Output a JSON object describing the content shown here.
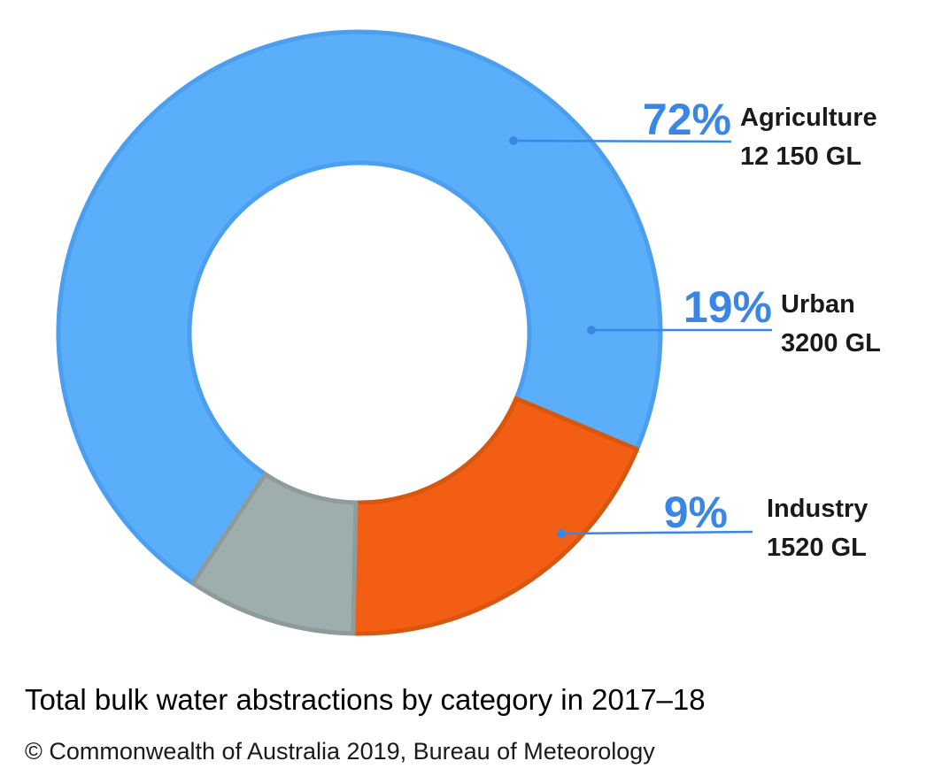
{
  "chart_data": {
    "type": "pie",
    "variant": "donut",
    "title": "Total bulk water abstractions by category in 2017–18",
    "source": "© Commonwealth of Australia 2019, Bureau of Meteorology",
    "unit": "GL",
    "legend": "right",
    "slices": [
      {
        "name": "Agriculture",
        "percent": 72,
        "percent_label": "72%",
        "value": 12150,
        "value_label": "12 150 GL",
        "color": "#5aaefa",
        "border": "#4b9fee"
      },
      {
        "name": "Urban",
        "percent": 19,
        "percent_label": "19%",
        "value": 3200,
        "value_label": "3200 GL",
        "color": "#f25f14",
        "border": "#d9560f"
      },
      {
        "name": "Industry",
        "percent": 9,
        "percent_label": "9%",
        "value": 1520,
        "value_label": "1520 GL",
        "color": "#9eaeac",
        "border": "#8d9c9a"
      }
    ],
    "label_color": "#3a86e6",
    "leader_color": "#3a86e6"
  }
}
